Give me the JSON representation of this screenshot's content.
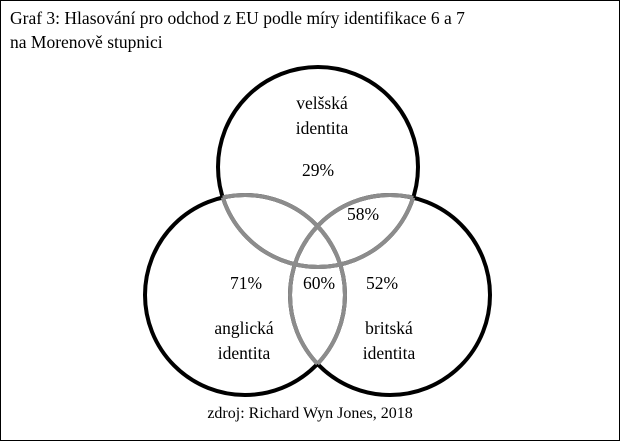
{
  "title": {
    "line1": "Graf 3: Hlasování pro odchod z EU podle míry identifikace 6 a 7",
    "line2": "na Morenově stupnici"
  },
  "sets": {
    "welsh": {
      "label_line1": "velšská",
      "label_line2": "identita",
      "value": "29%"
    },
    "english": {
      "label_line1": "anglická",
      "label_line2": "identita",
      "value": "71%"
    },
    "british": {
      "label_line1": "britská",
      "label_line2": "identita",
      "value": "52%"
    }
  },
  "overlaps": {
    "welsh_british": "58%",
    "english_british": "60%"
  },
  "colors": {
    "circle_outline": "#000000",
    "overlap_outline": "#8c8c8c"
  },
  "source": "zdroj: Richard Wyn Jones, 2018"
}
